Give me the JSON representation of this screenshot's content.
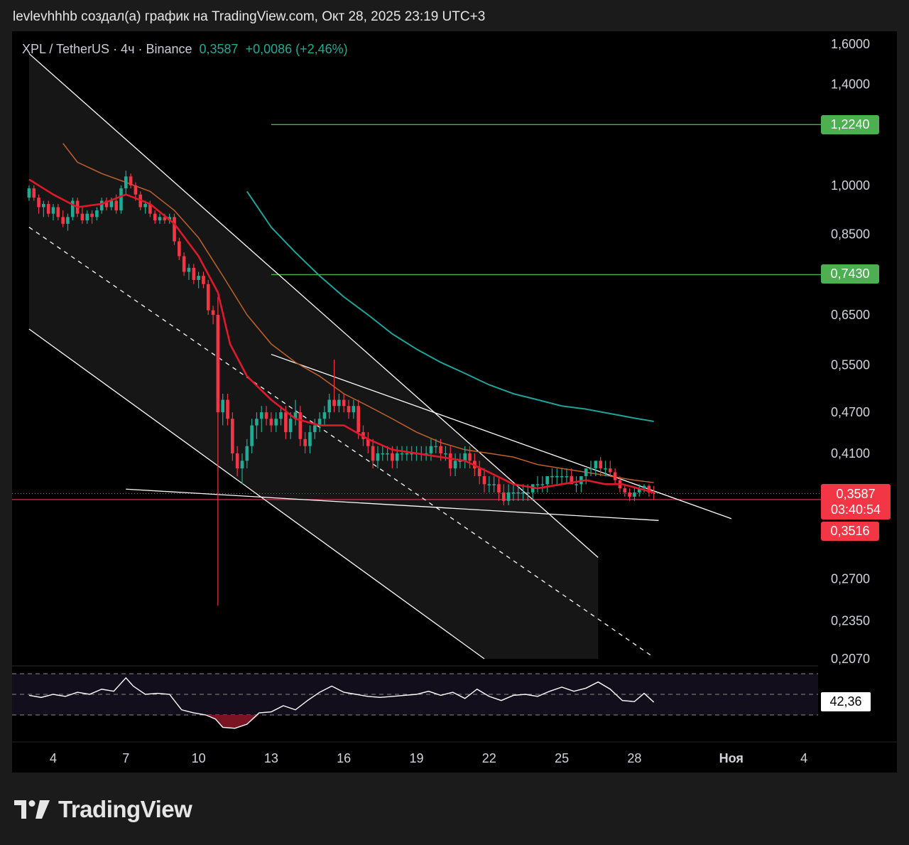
{
  "header": {
    "attribution": "levlevhhhb создал(а) график на TradingView.com, Окт 28, 2025 23:19 UTC+3"
  },
  "legend": {
    "symbol": "XPL / TetherUS · 4ч · Binance",
    "last": "0,3587",
    "change": "+0,0086 (+2,46%)"
  },
  "colors": {
    "up": "#22ab94",
    "down": "#f23645",
    "ema_fast": "#e0192a",
    "ema_mid": "#c0622a",
    "ema_slow": "#1fa39a",
    "lines": "#ffffff",
    "level": "#4caf50"
  },
  "chart_data": {
    "type": "line",
    "title": "XPL / TetherUS · 4ч · Binance",
    "y_scale": "log",
    "y_ticks": [
      "1,6000",
      "1,4000",
      "1,0000",
      "0,8500",
      "0,6500",
      "0,5500",
      "0,4700",
      "0,4100",
      "0,2700",
      "0,2350",
      "0,2070"
    ],
    "y_tick_values": [
      1.6,
      1.4,
      1.0,
      0.85,
      0.65,
      0.55,
      0.47,
      0.41,
      0.27,
      0.235,
      0.207
    ],
    "x_ticks": [
      "4",
      "7",
      "10",
      "13",
      "16",
      "19",
      "22",
      "25",
      "28",
      "Ноя",
      "4"
    ],
    "x_tick_days": [
      4,
      7,
      10,
      13,
      16,
      19,
      22,
      25,
      28,
      32,
      35
    ],
    "levels": [
      {
        "label": "1,2240",
        "value": 1.224,
        "from_day": 13
      },
      {
        "label": "0,7430",
        "value": 0.743,
        "from_day": 13
      }
    ],
    "price_tag": {
      "price": "0,3587",
      "countdown": "03:40:54"
    },
    "horizontal_line": {
      "label": "0,3516",
      "value": 0.3516
    },
    "ema_fast": [
      [
        3.0,
        1.02
      ],
      [
        4,
        0.97
      ],
      [
        5,
        0.93
      ],
      [
        6,
        0.94
      ],
      [
        7,
        0.97
      ],
      [
        8,
        0.94
      ],
      [
        9,
        0.88
      ],
      [
        10,
        0.79
      ],
      [
        10.8,
        0.7
      ],
      [
        11.3,
        0.59
      ],
      [
        12,
        0.53
      ],
      [
        13,
        0.49
      ],
      [
        14,
        0.46
      ],
      [
        15,
        0.45
      ],
      [
        16,
        0.45
      ],
      [
        17,
        0.43
      ],
      [
        18,
        0.415
      ],
      [
        19,
        0.41
      ],
      [
        20,
        0.405
      ],
      [
        21,
        0.4
      ],
      [
        22,
        0.385
      ],
      [
        23,
        0.37
      ],
      [
        24,
        0.365
      ],
      [
        25,
        0.37
      ],
      [
        26,
        0.375
      ],
      [
        26.8,
        0.37
      ],
      [
        27.5,
        0.37
      ],
      [
        28.8,
        0.36
      ]
    ],
    "ema_mid": [
      [
        4.4,
        1.15
      ],
      [
        5,
        1.08
      ],
      [
        6,
        1.04
      ],
      [
        7,
        1.01
      ],
      [
        8,
        0.98
      ],
      [
        9,
        0.92
      ],
      [
        10,
        0.84
      ],
      [
        11,
        0.74
      ],
      [
        12,
        0.65
      ],
      [
        13,
        0.59
      ],
      [
        14,
        0.555
      ],
      [
        15,
        0.53
      ],
      [
        16,
        0.5
      ],
      [
        17,
        0.48
      ],
      [
        18,
        0.46
      ],
      [
        19,
        0.44
      ],
      [
        20,
        0.425
      ],
      [
        21,
        0.415
      ],
      [
        22,
        0.41
      ],
      [
        23,
        0.405
      ],
      [
        24,
        0.395
      ],
      [
        25,
        0.39
      ],
      [
        26,
        0.385
      ],
      [
        27,
        0.38
      ],
      [
        28,
        0.375
      ],
      [
        28.8,
        0.372
      ]
    ],
    "ema_slow": [
      [
        12.0,
        0.98
      ],
      [
        13,
        0.87
      ],
      [
        14,
        0.8
      ],
      [
        15,
        0.74
      ],
      [
        16,
        0.69
      ],
      [
        17,
        0.65
      ],
      [
        18,
        0.61
      ],
      [
        19,
        0.58
      ],
      [
        20,
        0.555
      ],
      [
        21,
        0.535
      ],
      [
        22,
        0.515
      ],
      [
        23,
        0.5
      ],
      [
        24,
        0.49
      ],
      [
        25,
        0.48
      ],
      [
        26,
        0.475
      ],
      [
        27,
        0.468
      ],
      [
        28,
        0.461
      ],
      [
        28.8,
        0.456
      ]
    ],
    "trend_lines": [
      {
        "from": [
          3,
          1.55
        ],
        "to": [
          26.5,
          0.29
        ],
        "dashed": false
      },
      {
        "from": [
          3,
          0.87
        ],
        "to": [
          28.8,
          0.208
        ],
        "dashed": true
      },
      {
        "from": [
          3,
          0.62
        ],
        "to": [
          21.8,
          0.207
        ],
        "dashed": false
      },
      {
        "from": [
          13,
          0.57
        ],
        "to": [
          32,
          0.33
        ],
        "dashed": false
      },
      {
        "from": [
          7,
          0.364
        ],
        "to": [
          29,
          0.328
        ],
        "dashed": false
      }
    ],
    "candles": [
      [
        3.0,
        0.96,
        1.0,
        0.95,
        0.99
      ],
      [
        3.2,
        0.99,
        1.0,
        0.95,
        0.96
      ],
      [
        3.4,
        0.96,
        0.97,
        0.91,
        0.93
      ],
      [
        3.6,
        0.93,
        0.95,
        0.9,
        0.94
      ],
      [
        3.8,
        0.94,
        0.95,
        0.9,
        0.91
      ],
      [
        4.0,
        0.91,
        0.94,
        0.89,
        0.93
      ],
      [
        4.2,
        0.93,
        0.94,
        0.89,
        0.9
      ],
      [
        4.4,
        0.9,
        0.92,
        0.87,
        0.88
      ],
      [
        4.6,
        0.88,
        0.91,
        0.86,
        0.9
      ],
      [
        4.8,
        0.9,
        0.96,
        0.89,
        0.95
      ],
      [
        5.0,
        0.95,
        0.96,
        0.9,
        0.91
      ],
      [
        5.2,
        0.91,
        0.93,
        0.88,
        0.89
      ],
      [
        5.4,
        0.89,
        0.92,
        0.88,
        0.91
      ],
      [
        5.6,
        0.91,
        0.92,
        0.88,
        0.9
      ],
      [
        5.8,
        0.9,
        0.93,
        0.89,
        0.92
      ],
      [
        6.0,
        0.92,
        0.96,
        0.91,
        0.95
      ],
      [
        6.2,
        0.95,
        0.96,
        0.92,
        0.93
      ],
      [
        6.4,
        0.93,
        0.96,
        0.92,
        0.95
      ],
      [
        6.6,
        0.95,
        0.97,
        0.91,
        0.92
      ],
      [
        6.8,
        0.92,
        1.0,
        0.91,
        0.99
      ],
      [
        7.0,
        0.99,
        1.05,
        0.97,
        1.03
      ],
      [
        7.2,
        1.03,
        1.04,
        0.99,
        1.0
      ],
      [
        7.4,
        1.0,
        1.01,
        0.95,
        0.97
      ],
      [
        7.6,
        0.97,
        0.98,
        0.92,
        0.93
      ],
      [
        7.8,
        0.93,
        0.95,
        0.91,
        0.94
      ],
      [
        8.0,
        0.94,
        0.95,
        0.9,
        0.91
      ],
      [
        8.2,
        0.91,
        0.92,
        0.88,
        0.89
      ],
      [
        8.4,
        0.89,
        0.91,
        0.88,
        0.9
      ],
      [
        8.6,
        0.9,
        0.91,
        0.88,
        0.89
      ],
      [
        8.8,
        0.89,
        0.91,
        0.88,
        0.9
      ],
      [
        9.0,
        0.9,
        0.91,
        0.82,
        0.83
      ],
      [
        9.2,
        0.83,
        0.84,
        0.78,
        0.79
      ],
      [
        9.4,
        0.79,
        0.8,
        0.74,
        0.75
      ],
      [
        9.6,
        0.75,
        0.77,
        0.73,
        0.76
      ],
      [
        9.8,
        0.76,
        0.77,
        0.72,
        0.73
      ],
      [
        10.0,
        0.73,
        0.75,
        0.71,
        0.74
      ],
      [
        10.2,
        0.74,
        0.75,
        0.71,
        0.72
      ],
      [
        10.4,
        0.72,
        0.73,
        0.65,
        0.66
      ],
      [
        10.6,
        0.66,
        0.67,
        0.63,
        0.65
      ],
      [
        10.8,
        0.65,
        0.69,
        0.247,
        0.47
      ],
      [
        11.0,
        0.47,
        0.5,
        0.45,
        0.49
      ],
      [
        11.2,
        0.49,
        0.5,
        0.45,
        0.46
      ],
      [
        11.4,
        0.46,
        0.47,
        0.4,
        0.41
      ],
      [
        11.6,
        0.41,
        0.42,
        0.38,
        0.39
      ],
      [
        11.8,
        0.39,
        0.41,
        0.37,
        0.4
      ],
      [
        12.0,
        0.4,
        0.43,
        0.39,
        0.42
      ],
      [
        12.2,
        0.42,
        0.46,
        0.41,
        0.45
      ],
      [
        12.4,
        0.45,
        0.47,
        0.43,
        0.46
      ],
      [
        12.6,
        0.46,
        0.48,
        0.44,
        0.47
      ],
      [
        12.8,
        0.47,
        0.48,
        0.45,
        0.46
      ],
      [
        13.0,
        0.46,
        0.47,
        0.44,
        0.45
      ],
      [
        13.2,
        0.45,
        0.47,
        0.44,
        0.46
      ],
      [
        13.4,
        0.46,
        0.48,
        0.45,
        0.47
      ],
      [
        13.6,
        0.47,
        0.48,
        0.43,
        0.44
      ],
      [
        13.8,
        0.44,
        0.47,
        0.43,
        0.46
      ],
      [
        14.0,
        0.46,
        0.49,
        0.45,
        0.47
      ],
      [
        14.2,
        0.47,
        0.48,
        0.42,
        0.43
      ],
      [
        14.4,
        0.43,
        0.44,
        0.41,
        0.42
      ],
      [
        14.6,
        0.42,
        0.45,
        0.41,
        0.44
      ],
      [
        14.8,
        0.44,
        0.46,
        0.43,
        0.45
      ],
      [
        15.0,
        0.45,
        0.47,
        0.44,
        0.46
      ],
      [
        15.2,
        0.46,
        0.48,
        0.45,
        0.47
      ],
      [
        15.4,
        0.47,
        0.5,
        0.46,
        0.49
      ],
      [
        15.6,
        0.49,
        0.56,
        0.47,
        0.48
      ],
      [
        15.8,
        0.48,
        0.5,
        0.47,
        0.49
      ],
      [
        16.0,
        0.49,
        0.5,
        0.47,
        0.48
      ],
      [
        16.2,
        0.48,
        0.49,
        0.46,
        0.47
      ],
      [
        16.4,
        0.47,
        0.49,
        0.46,
        0.48
      ],
      [
        16.6,
        0.48,
        0.49,
        0.43,
        0.44
      ],
      [
        16.8,
        0.44,
        0.45,
        0.42,
        0.43
      ],
      [
        17.0,
        0.43,
        0.44,
        0.41,
        0.42
      ],
      [
        17.2,
        0.42,
        0.43,
        0.39,
        0.4
      ],
      [
        17.4,
        0.4,
        0.42,
        0.39,
        0.41
      ],
      [
        17.6,
        0.41,
        0.42,
        0.4,
        0.41
      ],
      [
        17.8,
        0.41,
        0.42,
        0.4,
        0.41
      ],
      [
        18.0,
        0.41,
        0.42,
        0.39,
        0.4
      ],
      [
        18.2,
        0.4,
        0.42,
        0.39,
        0.41
      ],
      [
        18.4,
        0.41,
        0.42,
        0.4,
        0.41
      ],
      [
        18.6,
        0.41,
        0.42,
        0.4,
        0.41
      ],
      [
        18.8,
        0.41,
        0.42,
        0.4,
        0.41
      ],
      [
        19.0,
        0.41,
        0.42,
        0.4,
        0.41
      ],
      [
        19.2,
        0.41,
        0.42,
        0.4,
        0.41
      ],
      [
        19.4,
        0.41,
        0.42,
        0.4,
        0.41
      ],
      [
        19.6,
        0.41,
        0.43,
        0.4,
        0.42
      ],
      [
        19.8,
        0.42,
        0.43,
        0.41,
        0.42
      ],
      [
        20.0,
        0.42,
        0.43,
        0.4,
        0.41
      ],
      [
        20.2,
        0.41,
        0.42,
        0.4,
        0.41
      ],
      [
        20.4,
        0.41,
        0.42,
        0.38,
        0.39
      ],
      [
        20.6,
        0.39,
        0.41,
        0.38,
        0.4
      ],
      [
        20.8,
        0.4,
        0.41,
        0.39,
        0.4
      ],
      [
        21.0,
        0.4,
        0.42,
        0.39,
        0.41
      ],
      [
        21.2,
        0.41,
        0.42,
        0.39,
        0.4
      ],
      [
        21.4,
        0.4,
        0.41,
        0.38,
        0.39
      ],
      [
        21.6,
        0.39,
        0.4,
        0.37,
        0.38
      ],
      [
        21.8,
        0.38,
        0.39,
        0.36,
        0.37
      ],
      [
        22.0,
        0.37,
        0.38,
        0.36,
        0.37
      ],
      [
        22.2,
        0.37,
        0.38,
        0.36,
        0.37
      ],
      [
        22.4,
        0.37,
        0.38,
        0.35,
        0.36
      ],
      [
        22.6,
        0.36,
        0.37,
        0.345,
        0.35
      ],
      [
        22.8,
        0.35,
        0.37,
        0.345,
        0.36
      ],
      [
        23.0,
        0.36,
        0.37,
        0.35,
        0.36
      ],
      [
        23.2,
        0.36,
        0.37,
        0.35,
        0.36
      ],
      [
        23.4,
        0.36,
        0.37,
        0.35,
        0.36
      ],
      [
        23.6,
        0.36,
        0.37,
        0.35,
        0.36
      ],
      [
        23.8,
        0.36,
        0.37,
        0.35,
        0.37
      ],
      [
        24.0,
        0.37,
        0.38,
        0.36,
        0.37
      ],
      [
        24.2,
        0.37,
        0.38,
        0.36,
        0.37
      ],
      [
        24.4,
        0.37,
        0.38,
        0.36,
        0.38
      ],
      [
        24.6,
        0.38,
        0.39,
        0.37,
        0.38
      ],
      [
        24.8,
        0.38,
        0.39,
        0.37,
        0.38
      ],
      [
        25.0,
        0.38,
        0.39,
        0.37,
        0.38
      ],
      [
        25.2,
        0.38,
        0.39,
        0.37,
        0.38
      ],
      [
        25.4,
        0.38,
        0.39,
        0.37,
        0.37
      ],
      [
        25.6,
        0.37,
        0.38,
        0.36,
        0.37
      ],
      [
        25.8,
        0.37,
        0.38,
        0.36,
        0.38
      ],
      [
        26.0,
        0.38,
        0.39,
        0.37,
        0.39
      ],
      [
        26.2,
        0.39,
        0.4,
        0.38,
        0.39
      ],
      [
        26.4,
        0.39,
        0.4,
        0.38,
        0.4
      ],
      [
        26.6,
        0.4,
        0.405,
        0.38,
        0.39
      ],
      [
        26.8,
        0.39,
        0.4,
        0.38,
        0.39
      ],
      [
        27.0,
        0.39,
        0.4,
        0.38,
        0.385
      ],
      [
        27.2,
        0.385,
        0.39,
        0.37,
        0.375
      ],
      [
        27.4,
        0.375,
        0.38,
        0.36,
        0.365
      ],
      [
        27.6,
        0.365,
        0.37,
        0.355,
        0.36
      ],
      [
        27.8,
        0.36,
        0.365,
        0.35,
        0.355
      ],
      [
        28.0,
        0.355,
        0.365,
        0.35,
        0.36
      ],
      [
        28.2,
        0.36,
        0.37,
        0.355,
        0.365
      ],
      [
        28.4,
        0.365,
        0.37,
        0.36,
        0.368
      ],
      [
        28.6,
        0.368,
        0.37,
        0.355,
        0.36
      ],
      [
        28.8,
        0.36,
        0.368,
        0.352,
        0.3587
      ]
    ],
    "rsi": {
      "label": "42,36",
      "value": 42.36,
      "levels": [
        70,
        50,
        30
      ],
      "values": [
        [
          3,
          49
        ],
        [
          3.5,
          47
        ],
        [
          4,
          50
        ],
        [
          4.5,
          48
        ],
        [
          5,
          52
        ],
        [
          5.5,
          50
        ],
        [
          6,
          55
        ],
        [
          6.5,
          53
        ],
        [
          7,
          66
        ],
        [
          7.3,
          58
        ],
        [
          7.8,
          50
        ],
        [
          8.3,
          51
        ],
        [
          8.8,
          50
        ],
        [
          9.3,
          35
        ],
        [
          9.8,
          32
        ],
        [
          10.3,
          30
        ],
        [
          10.7,
          26
        ],
        [
          11,
          18
        ],
        [
          11.5,
          17
        ],
        [
          12,
          21
        ],
        [
          12.5,
          32
        ],
        [
          13,
          33
        ],
        [
          13.5,
          39
        ],
        [
          14,
          35
        ],
        [
          14.5,
          44
        ],
        [
          15,
          52
        ],
        [
          15.5,
          58
        ],
        [
          16,
          52
        ],
        [
          16.5,
          50
        ],
        [
          17,
          48
        ],
        [
          17.5,
          47
        ],
        [
          18,
          48
        ],
        [
          18.5,
          49
        ],
        [
          19,
          50
        ],
        [
          19.5,
          53
        ],
        [
          20,
          49
        ],
        [
          20.5,
          52
        ],
        [
          21,
          46
        ],
        [
          21.5,
          55
        ],
        [
          22,
          48
        ],
        [
          22.5,
          44
        ],
        [
          23,
          49
        ],
        [
          23.5,
          50
        ],
        [
          24,
          48
        ],
        [
          24.5,
          53
        ],
        [
          25,
          57
        ],
        [
          25.5,
          53
        ],
        [
          26,
          56
        ],
        [
          26.5,
          62
        ],
        [
          27,
          55
        ],
        [
          27.5,
          44
        ],
        [
          28,
          43
        ],
        [
          28.4,
          51
        ],
        [
          28.8,
          42.36
        ]
      ]
    }
  }
}
